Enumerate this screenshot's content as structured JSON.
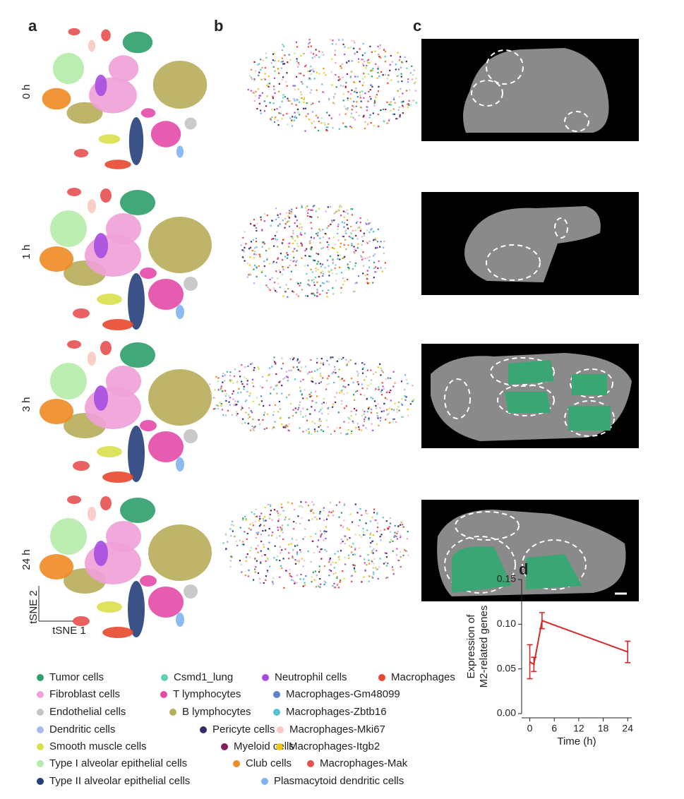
{
  "panels": [
    "a",
    "b",
    "c",
    "d"
  ],
  "rows": [
    "0 h",
    "1 h",
    "3 h",
    "24 h"
  ],
  "tsne_axes": {
    "x": "tSNE 1",
    "y": "tSNE 2"
  },
  "legend": [
    [
      {
        "name": "Tumor cells",
        "color": "#2e9e6a"
      },
      {
        "name": "Csmd1_lung",
        "color": "#5fd3b8"
      },
      {
        "name": "Neutrophil cells",
        "color": "#a64de0"
      },
      {
        "name": "Macrophages",
        "color": "#e8482f"
      }
    ],
    [
      {
        "name": "Fibroblast cells",
        "color": "#f0a0d8"
      },
      {
        "name": "T lymphocytes",
        "color": "#e34aa8"
      },
      {
        "name": "Macrophages-Gm48099",
        "color": "#5b84c4"
      }
    ],
    [
      {
        "name": "Endothelial cells",
        "color": "#c4c4c4"
      },
      {
        "name": "B lymphocytes",
        "color": "#b8ad5a"
      },
      {
        "name": "Macrophages-Zbtb16",
        "color": "#55c1d6"
      }
    ],
    [
      {
        "name": "Dendritic cells",
        "color": "#a9b9f0"
      },
      {
        "name": "Pericyte cells",
        "color": "#3b2a6e"
      },
      {
        "name": "Macrophages-Mki67",
        "color": "#f7c9c0"
      }
    ],
    [
      {
        "name": "Smooth muscle cells",
        "color": "#d9e04a"
      },
      {
        "name": "Myeloid cells",
        "color": "#8b1a5a"
      },
      {
        "name": "Macrophages-Itgb2",
        "color": "#f0c419"
      }
    ],
    [
      {
        "name": "Type I alveolar epithelial cells",
        "color": "#b5ecaa"
      },
      {
        "name": "Club cells",
        "color": "#ef8a24"
      },
      {
        "name": "Macrophages-Mak",
        "color": "#e85050"
      }
    ],
    [
      {
        "name": "Type II alveolar epithelial cells",
        "color": "#253f7a"
      },
      {
        "name": "Plasmacytoid dendritic cells",
        "color": "#7fb2f0"
      }
    ]
  ],
  "chart_data": {
    "type": "line",
    "xlabel": "Time (h)",
    "ylabel": [
      "Expression of",
      "M2-related genes"
    ],
    "x": [
      0,
      1,
      3,
      24
    ],
    "values": [
      0.058,
      0.055,
      0.104,
      0.069
    ],
    "errors": [
      0.019,
      0.008,
      0.009,
      0.012
    ],
    "color": "#d42a2a",
    "xlim": [
      -2,
      25
    ],
    "xticks": [
      0,
      6,
      12,
      18,
      24
    ],
    "ylim": [
      0,
      0.15
    ],
    "yticks": [
      {
        "value": 0,
        "label": "0.00"
      },
      {
        "value": 0.05,
        "label": "0.05"
      },
      {
        "value": 0.1,
        "label": "0.10"
      },
      {
        "value": 0.15,
        "label": "0.15"
      }
    ]
  }
}
